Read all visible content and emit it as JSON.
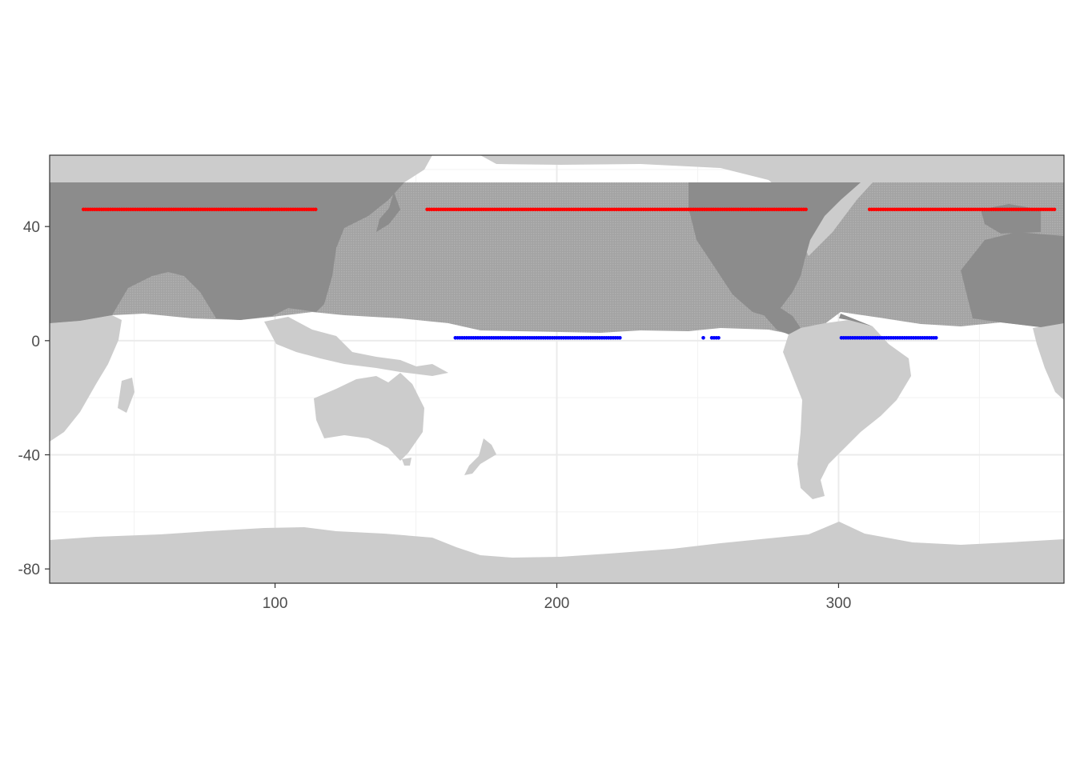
{
  "chart_data": {
    "type": "scatter",
    "title": "",
    "xlabel": "",
    "ylabel": "",
    "xlim": [
      20,
      380
    ],
    "ylim": [
      -85,
      65
    ],
    "x_ticks": [
      100,
      200,
      300
    ],
    "x_tick_labels": [
      "100",
      "200",
      "300"
    ],
    "y_ticks": [
      40,
      0,
      -40,
      -80
    ],
    "y_tick_labels": [
      "40",
      "0",
      "-40",
      "-80"
    ],
    "grid": true,
    "background": "world land/sea map (0–360 longitude); land light grey; band 6°–46° shaded darker",
    "colors": {
      "land": "#cccccc",
      "band_sea": "#a6a6a6",
      "band_land": "#8a8a8a",
      "north_line": "#ff0000",
      "south_line": "#0000ff"
    },
    "series": [
      {
        "color": "#ff0000",
        "segments": [
          {
            "lat": 46,
            "lon_range": [
              32,
              115
            ]
          },
          {
            "lat": 46,
            "lon_range": [
              154,
              289
            ]
          },
          {
            "lat": 46,
            "lon_range": [
              311,
              377
            ]
          }
        ]
      },
      {
        "color": "#0000ff",
        "segments": [
          {
            "lat": 1,
            "lon_range": [
              164,
              223
            ]
          },
          {
            "lat": 1,
            "lon_range": [
              252,
              252
            ]
          },
          {
            "lat": 1,
            "lon_range": [
              255,
              258
            ]
          },
          {
            "lat": 1,
            "lon_range": [
              301,
              335
            ]
          }
        ]
      }
    ]
  }
}
